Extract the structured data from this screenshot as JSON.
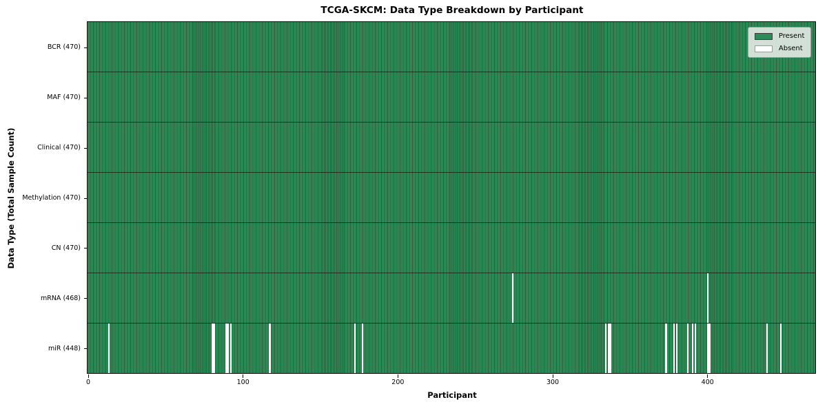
{
  "chart_data": {
    "type": "heatmap",
    "title": "TCGA-SKCM: Data Type Breakdown by Participant",
    "xlabel": "Participant",
    "ylabel": "Data Type (Total Sample Count)",
    "xlim": [
      0,
      470
    ],
    "x_ticks": [
      0,
      100,
      200,
      300,
      400
    ],
    "grid": false,
    "legend_position": "upper right",
    "legend": [
      {
        "label": "Present",
        "color": "#2e8b57",
        "edge": "#3d3d3d"
      },
      {
        "label": "Absent",
        "color": "#ffffff",
        "edge": "#9a9a9a"
      }
    ],
    "colors": {
      "present_fill": "#33915c",
      "present_edge": "#1e5e3b",
      "absent_fill": "#ffffff",
      "row_separator": "#0f1f15",
      "plot_border": "#0a0a0a"
    },
    "rows": [
      {
        "label": "BCR (470)",
        "data_type": "BCR",
        "present_count": 470,
        "absent_participants": []
      },
      {
        "label": "MAF (470)",
        "data_type": "MAF",
        "present_count": 470,
        "absent_participants": []
      },
      {
        "label": "Clinical (470)",
        "data_type": "Clinical",
        "present_count": 470,
        "absent_participants": []
      },
      {
        "label": "Methylation (470)",
        "data_type": "Methylation",
        "present_count": 470,
        "absent_participants": []
      },
      {
        "label": "CN (470)",
        "data_type": "CN",
        "present_count": 470,
        "absent_participants": []
      },
      {
        "label": "mRNA (468)",
        "data_type": "mRNA",
        "present_count": 468,
        "absent_participants": [
          274,
          400
        ]
      },
      {
        "label": "miR (448)",
        "data_type": "miR",
        "present_count": 448,
        "absent_participants": [
          13,
          80,
          81,
          89,
          90,
          92,
          117,
          172,
          177,
          334,
          336,
          337,
          373,
          378,
          380,
          387,
          390,
          392,
          400,
          401,
          438,
          447
        ]
      }
    ]
  }
}
